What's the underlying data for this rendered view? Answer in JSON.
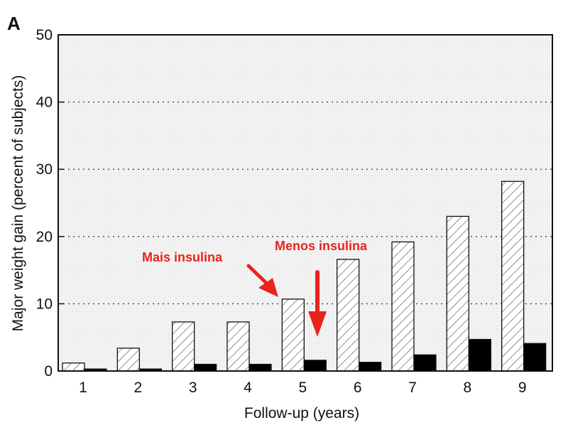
{
  "chart_data": {
    "type": "bar",
    "panel_label": "A",
    "categories": [
      "1",
      "2",
      "3",
      "4",
      "5",
      "6",
      "7",
      "8",
      "9"
    ],
    "series": [
      {
        "name": "hatched",
        "style": "hatched",
        "values": [
          1.2,
          3.4,
          7.3,
          7.3,
          10.7,
          16.6,
          19.2,
          23.0,
          28.2
        ]
      },
      {
        "name": "solid",
        "style": "solid",
        "values": [
          0.3,
          0.3,
          1.0,
          1.0,
          1.6,
          1.3,
          2.4,
          4.7,
          4.1
        ]
      }
    ],
    "xlabel": "Follow-up (years)",
    "ylabel": "Major weight gain (percent of subjects)",
    "ylim": [
      0,
      50
    ],
    "yticks": [
      "0",
      "10",
      "20",
      "30",
      "40",
      "50"
    ],
    "grid": "dotted horizontal",
    "annotations": [
      {
        "text": "Mais insulina",
        "color": "#e8241c"
      },
      {
        "text": "Menos insulina",
        "color": "#e8241c"
      }
    ],
    "colors": {
      "hatched_fill": "#ffffff",
      "solid_fill": "#000000",
      "background": "#f3f3f3",
      "annotation": "#e8241c"
    }
  }
}
